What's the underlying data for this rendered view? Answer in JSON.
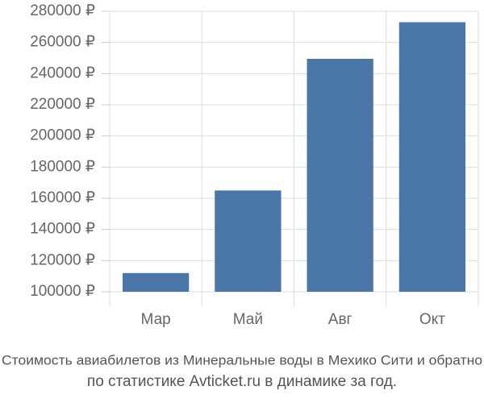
{
  "chart_data": {
    "type": "bar",
    "title": [
      "Стоимость авиабилетов из Минеральные воды в Мехико Сити и обратно",
      "по статистике Avticket.ru в динамике за год."
    ],
    "categories": [
      "Мар",
      "Май",
      "Авг",
      "Окт"
    ],
    "values": [
      112000,
      165000,
      249500,
      273000
    ],
    "color": "#4a76a8",
    "ylim": [
      100000,
      280000
    ],
    "yticks": [
      {
        "value": 100000,
        "label": "100000 ₽"
      },
      {
        "value": 120000,
        "label": "120000 ₽"
      },
      {
        "value": 140000,
        "label": "140000 ₽"
      },
      {
        "value": 160000,
        "label": "160000 ₽"
      },
      {
        "value": 180000,
        "label": "180000 ₽"
      },
      {
        "value": 200000,
        "label": "200000 ₽"
      },
      {
        "value": 220000,
        "label": "220000 ₽"
      },
      {
        "value": 240000,
        "label": "240000 ₽"
      },
      {
        "value": 260000,
        "label": "260000 ₽"
      },
      {
        "value": 280000,
        "label": "280000 ₽"
      }
    ],
    "grid": true
  }
}
